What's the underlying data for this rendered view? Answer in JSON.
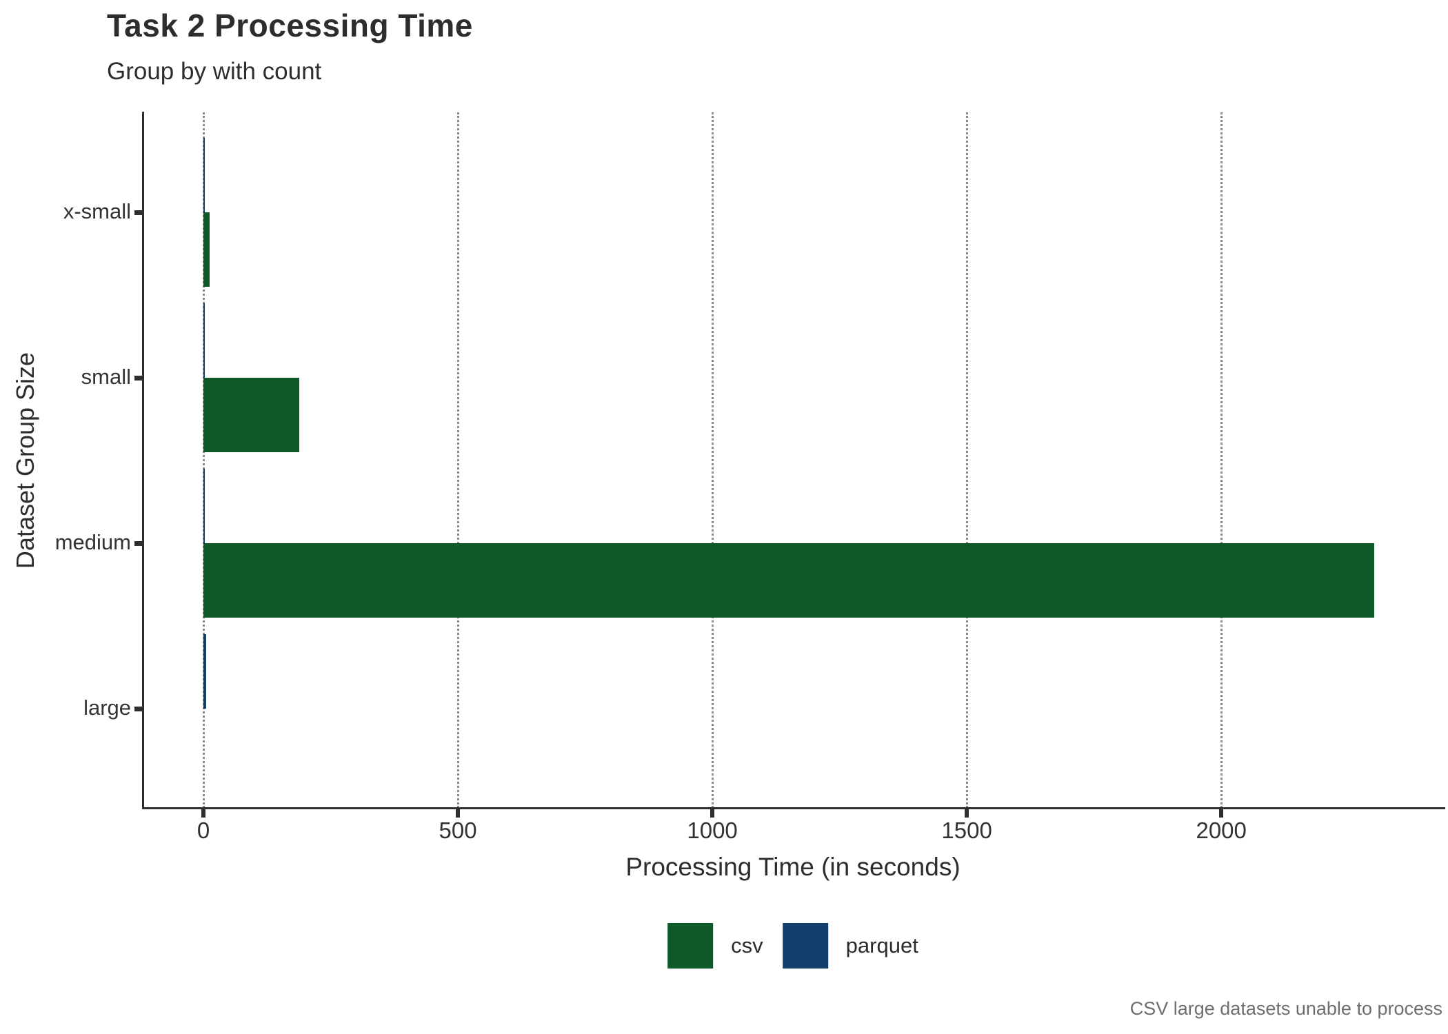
{
  "chart_data": {
    "type": "bar",
    "orientation": "horizontal",
    "title": "Task 2 Processing Time",
    "subtitle": "Group by with count",
    "xlabel": "Processing Time (in seconds)",
    "ylabel": "Dataset Group Size",
    "caption": "CSV large datasets unable to process",
    "categories": [
      "x-small",
      "small",
      "medium",
      "large"
    ],
    "series": [
      {
        "name": "csv",
        "color": "#0d5a28",
        "values": [
          12,
          188,
          2300,
          null
        ]
      },
      {
        "name": "parquet",
        "color": "#123e6b",
        "values": [
          2,
          2,
          3,
          6
        ]
      }
    ],
    "x_ticks": [
      0,
      500,
      1000,
      1500,
      2000
    ],
    "xlim": [
      0,
      2435
    ],
    "grid": "vertical-dotted",
    "gridline_color": "#8a8a8a",
    "legend_position": "bottom"
  }
}
